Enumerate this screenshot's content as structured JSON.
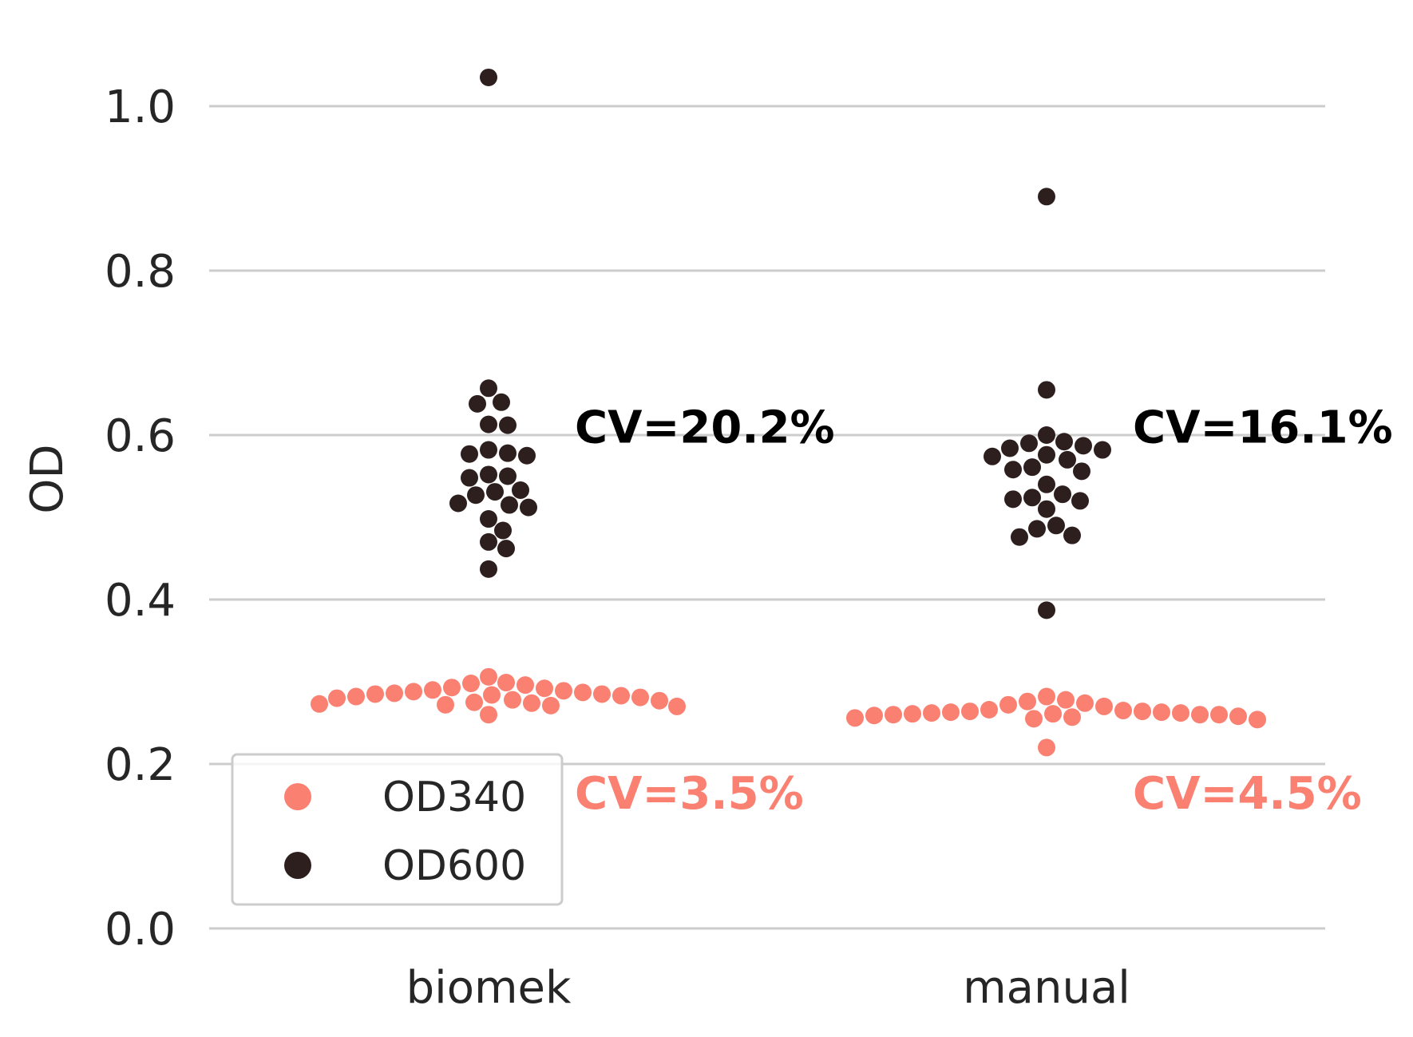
{
  "chart_data": {
    "type": "scatter",
    "subtype": "swarm",
    "title": "",
    "xlabel": "",
    "ylabel": "OD",
    "ylim": [
      0.0,
      1.05
    ],
    "yticks": [
      "0.0",
      "0.2",
      "0.4",
      "0.6",
      "0.8",
      "1.0"
    ],
    "grid": "horizontal",
    "categories": [
      "biomek",
      "manual"
    ],
    "legend": {
      "placement": "lower-left"
    },
    "series": [
      {
        "name": "OD340",
        "color": "#fa8072",
        "values": {
          "biomek": [
            0.285,
            0.284,
            0.283,
            0.282,
            0.281,
            0.28,
            0.296,
            0.293,
            0.29,
            0.288,
            0.287,
            0.286,
            0.275,
            0.274,
            0.273,
            0.272,
            0.271,
            0.27,
            0.306,
            0.299,
            0.298,
            0.292,
            0.289,
            0.278,
            0.277,
            0.26,
            0.285
          ],
          "manual": [
            0.265,
            0.264,
            0.263,
            0.262,
            0.261,
            0.26,
            0.26,
            0.261,
            0.262,
            0.263,
            0.264,
            0.266,
            0.278,
            0.276,
            0.274,
            0.272,
            0.27,
            0.282,
            0.258,
            0.257,
            0.256,
            0.255,
            0.254,
            0.259,
            0.22,
            0.26
          ]
        }
      },
      {
        "name": "OD600",
        "color": "#2e1f1f",
        "values": {
          "biomek": [
            1.035,
            0.657,
            0.64,
            0.638,
            0.613,
            0.612,
            0.582,
            0.578,
            0.577,
            0.575,
            0.552,
            0.55,
            0.548,
            0.533,
            0.531,
            0.527,
            0.517,
            0.515,
            0.512,
            0.498,
            0.484,
            0.47,
            0.462,
            0.437
          ],
          "manual": [
            0.89,
            0.655,
            0.6,
            0.592,
            0.59,
            0.587,
            0.584,
            0.582,
            0.576,
            0.574,
            0.57,
            0.561,
            0.558,
            0.556,
            0.54,
            0.528,
            0.524,
            0.522,
            0.52,
            0.51,
            0.49,
            0.486,
            0.478,
            0.476,
            0.387
          ]
        }
      }
    ],
    "annotations": [
      {
        "text": "CV=20.2%",
        "category": "biomek",
        "series": "OD600",
        "y": 0.61,
        "color": "#000000"
      },
      {
        "text": "CV=3.5%",
        "category": "biomek",
        "series": "OD340",
        "y": 0.165,
        "color": "#fa8072"
      },
      {
        "text": "CV=16.1%",
        "category": "manual",
        "series": "OD600",
        "y": 0.61,
        "color": "#000000"
      },
      {
        "text": "CV=4.5%",
        "category": "manual",
        "series": "OD340",
        "y": 0.165,
        "color": "#fa8072"
      }
    ]
  }
}
